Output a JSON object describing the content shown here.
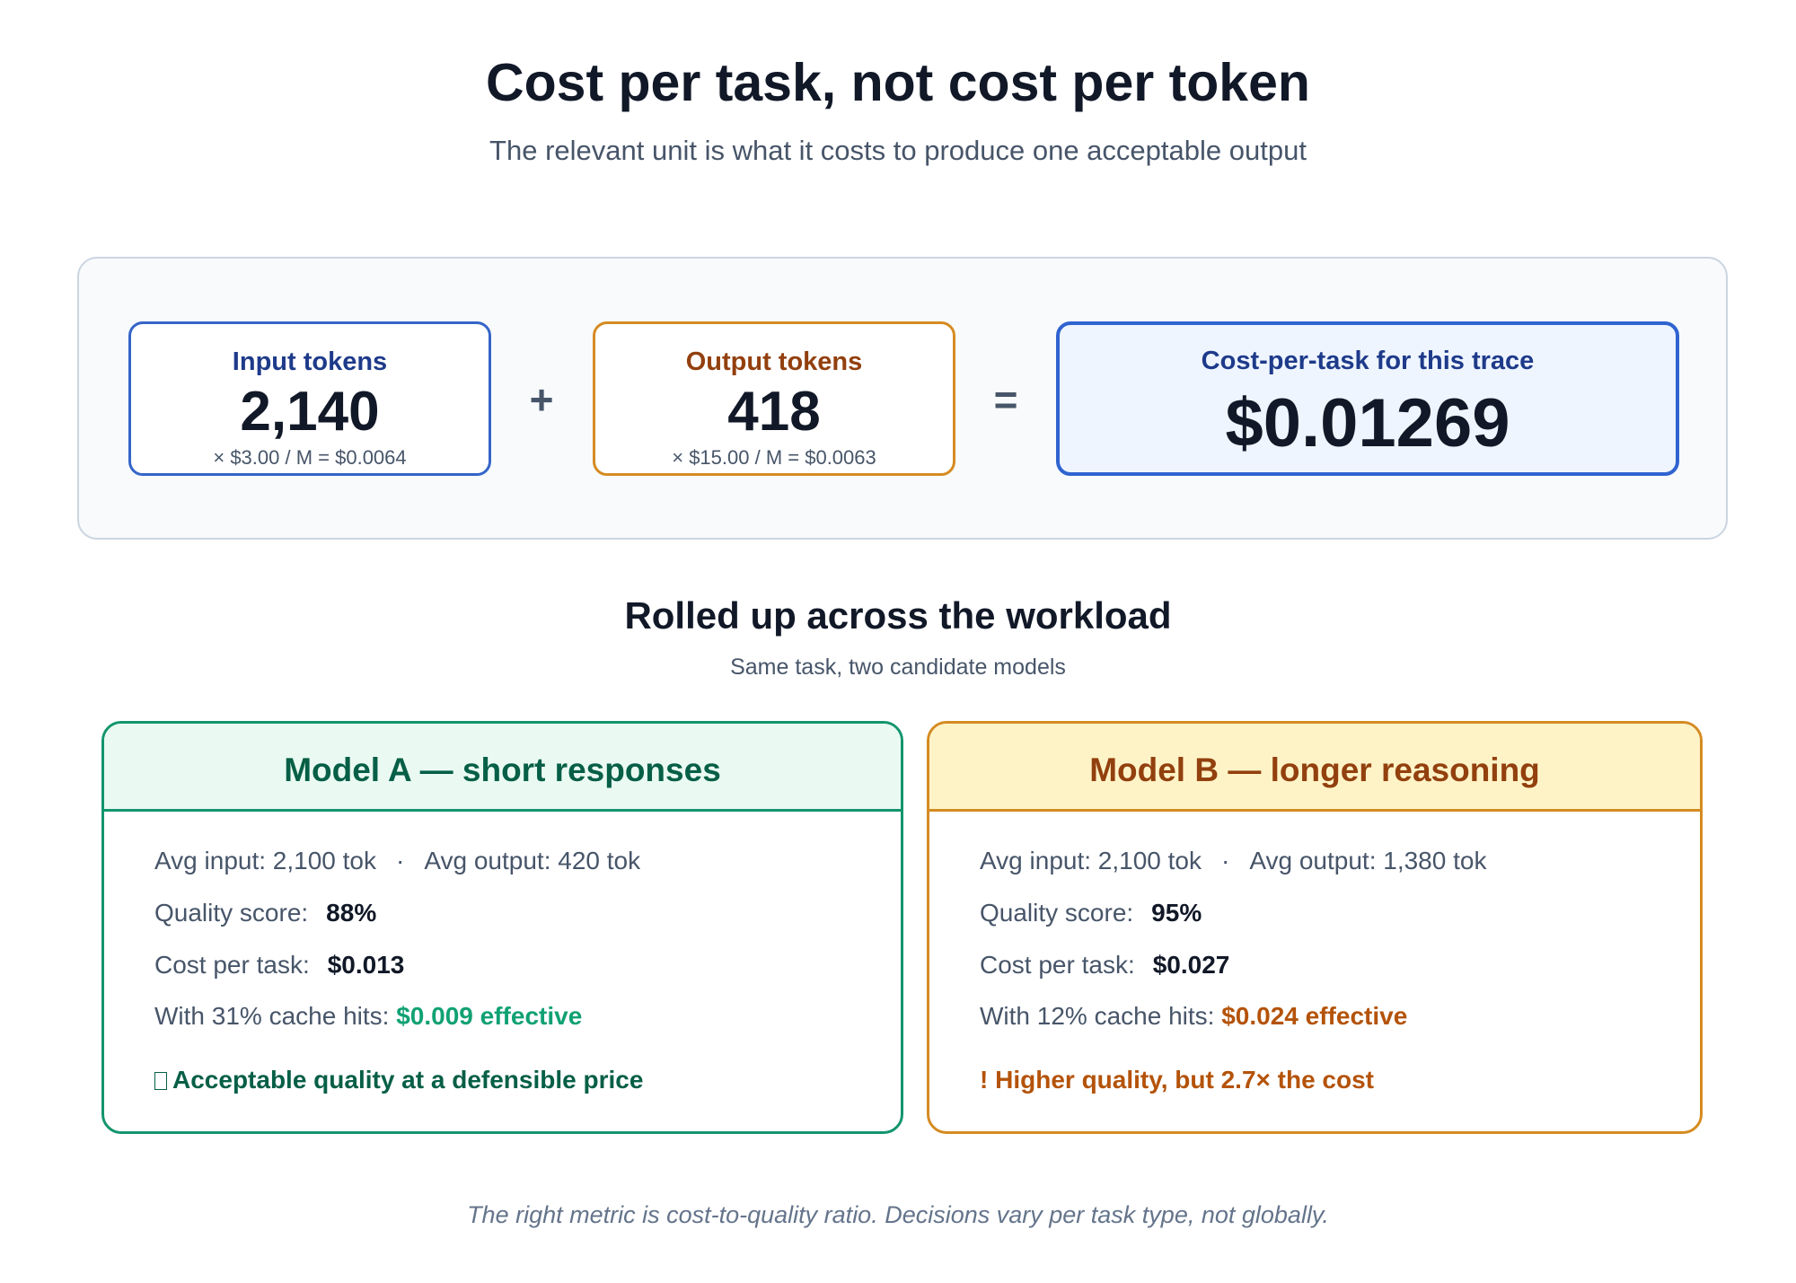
{
  "title": "Cost per task, not cost per token",
  "subtitle": "The relevant unit is what it costs to produce one acceptable output",
  "trace": {
    "input": {
      "label": "Input tokens",
      "value": "2,140",
      "formula": "× $3.00 / M = $0.0064"
    },
    "plus": "+",
    "output": {
      "label": "Output tokens",
      "value": "418",
      "formula": "× $15.00 / M = $0.0063"
    },
    "equals": "=",
    "result": {
      "label": "Cost-per-task for this trace",
      "value": "$0.01269"
    },
    "colors": {
      "input_border": "#3565c8",
      "output_border": "#d58b22",
      "result_border": "#2f63d0"
    }
  },
  "rollup": {
    "title": "Rolled up across the workload",
    "subtitle": "Same task, two candidate models"
  },
  "model_a": {
    "header": "Model A — short responses",
    "avg_input": "Avg input: 2,100 tok",
    "separator": "·",
    "avg_output": "Avg output: 420 tok",
    "quality_label": "Quality score:",
    "quality_value": "88%",
    "cost_label": "Cost per task:",
    "cost_value": "$0.013",
    "cache_text": "With 31% cache hits:",
    "cache_value": "$0.009 effective",
    "verdict_icon": "check-icon",
    "verdict": "Acceptable quality at a defensible price",
    "color": "#14956e"
  },
  "model_b": {
    "header": "Model B — longer reasoning",
    "avg_input": "Avg input: 2,100 tok",
    "separator": "·",
    "avg_output": "Avg output: 1,380 tok",
    "quality_label": "Quality score:",
    "quality_value": "95%",
    "cost_label": "Cost per task:",
    "cost_value": "$0.027",
    "cache_text": "With 12% cache hits:",
    "cache_value": "$0.024 effective",
    "verdict_icon": "!",
    "verdict": "Higher quality, but 2.7× the cost",
    "color": "#d58b22"
  },
  "footer": "The right metric is cost-to-quality ratio. Decisions vary per task type, not globally."
}
